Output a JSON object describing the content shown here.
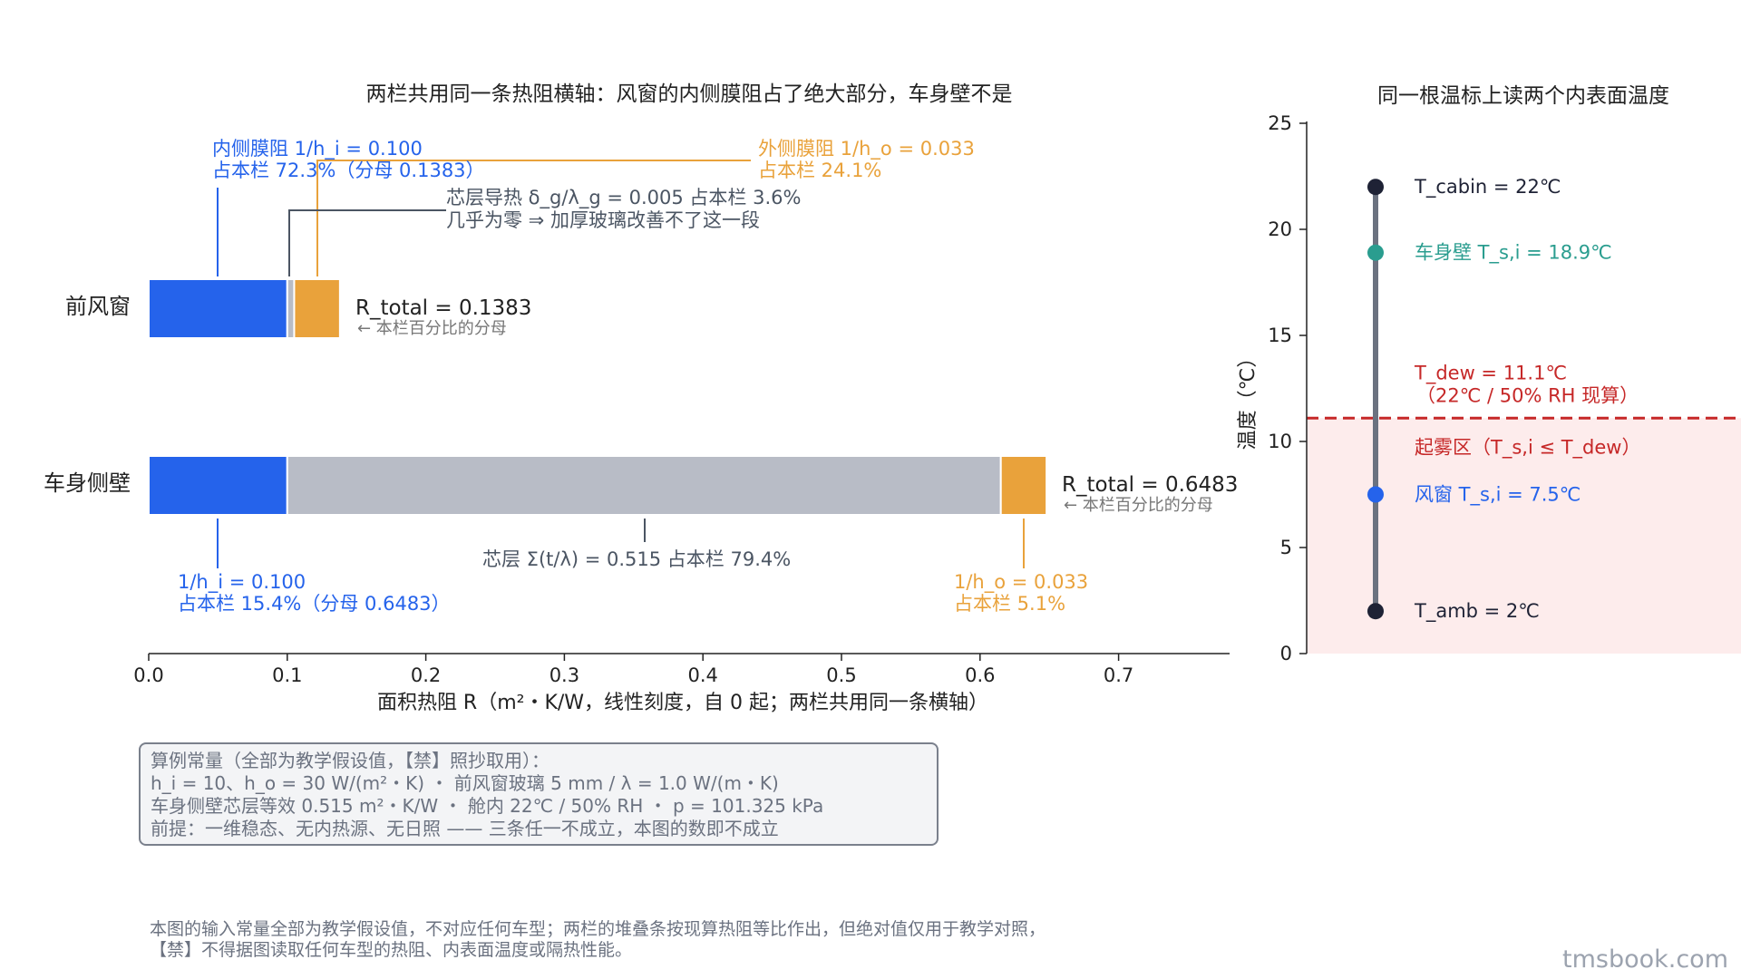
{
  "chart_data": [
    {
      "type": "bar",
      "stacked": true,
      "orientation": "horizontal",
      "title": "两栏共用同一条热阻横轴：风窗的内侧膜阻占了绝大部分，车身壁不是",
      "xlabel": "面积热阻 R（m²・K/W，线性刻度，自 0 起；两栏共用同一条横轴）",
      "xlim": [
        0,
        0.78
      ],
      "xticks": [
        "0.0",
        "0.1",
        "0.2",
        "0.3",
        "0.4",
        "0.5",
        "0.6",
        "0.7"
      ],
      "categories": [
        "前风窗",
        "车身侧壁"
      ],
      "segment_colors": [
        "#2563eb",
        "#b8bcc6",
        "#e9a23b"
      ],
      "series": [
        {
          "values": [
            0.1,
            0.1
          ]
        },
        {
          "values": [
            0.005,
            0.515
          ]
        },
        {
          "values": [
            0.033,
            0.033
          ]
        }
      ],
      "totals": [
        {
          "label": "R_total = 0.1383",
          "note": "← 本栏百分比的分母"
        },
        {
          "label": "R_total = 0.6483",
          "note": "← 本栏百分比的分母"
        }
      ],
      "annotations": {
        "windshield_inner": [
          "内侧膜阻 1/h_i = 0.100",
          "占本栏 72.3%（分母 0.1383）"
        ],
        "windshield_outer": [
          "外侧膜阻 1/h_o = 0.033",
          "占本栏 24.1%"
        ],
        "windshield_core": [
          "芯层导热 δ_g/λ_g = 0.005   占本栏 3.6%",
          "几乎为零 ⇒ 加厚玻璃改善不了这一段"
        ],
        "wall_inner": [
          "1/h_i = 0.100",
          "占本栏 15.4%（分母 0.6483）"
        ],
        "wall_core": [
          "芯层 Σ(t/λ) = 0.515   占本栏 79.4%"
        ],
        "wall_outer": [
          "1/h_o = 0.033",
          "占本栏 5.1%"
        ]
      }
    },
    {
      "type": "scatter",
      "title": "同一根温标上读两个内表面温度",
      "ylabel": "温度（℃）",
      "ylim": [
        0,
        25
      ],
      "yticks": [
        "0",
        "5",
        "10",
        "15",
        "20",
        "25"
      ],
      "dew_point": 11.1,
      "dew_label": [
        "T_dew = 11.1℃",
        "（22℃ / 50% RH 现算）"
      ],
      "fog_zone_label": "起雾区（T_s,i ≤ T_dew）",
      "points": [
        {
          "label": "T_cabin = 22℃",
          "value": 22,
          "color": "#1e2235"
        },
        {
          "label": "车身壁 T_s,i = 18.9℃",
          "value": 18.9,
          "color": "#2a9d8f"
        },
        {
          "label": "风窗 T_s,i = 7.5℃",
          "value": 7.5,
          "color": "#2563eb"
        },
        {
          "label": "T_amb = 2℃",
          "value": 2,
          "color": "#1e2235"
        }
      ]
    }
  ],
  "constants_box": {
    "lines": [
      "算例常量（全部为教学假设值，【禁】照抄取用）：",
      "h_i = 10、h_o = 30 W/(m²・K)   ・   前风窗玻璃 5 mm / λ = 1.0 W/(m・K)",
      "车身侧壁芯层等效 0.515 m²・K/W   ・   舱内 22℃ / 50% RH   ・   p = 101.325 kPa",
      "前提：一维稳态、无内热源、无日照 —— 三条任一不成立，本图的数即不成立"
    ]
  },
  "footnote": [
    "本图的输入常量全部为教学假设值，不对应任何车型；两栏的堆叠条按现算热阻等比作出，但绝对值仅用于教学对照，",
    "【禁】不得据图读取任何车型的热阻、内表面温度或隔热性能。"
  ],
  "watermark": "tmsbook.com",
  "colors": {
    "inner_film": "#2563eb",
    "core": "#b8bcc6",
    "outer_film": "#e9a23b",
    "dew": "#c62828",
    "fog_zone": "#fdecec",
    "wall_surface": "#2a9d8f",
    "dark": "#1e2235"
  }
}
